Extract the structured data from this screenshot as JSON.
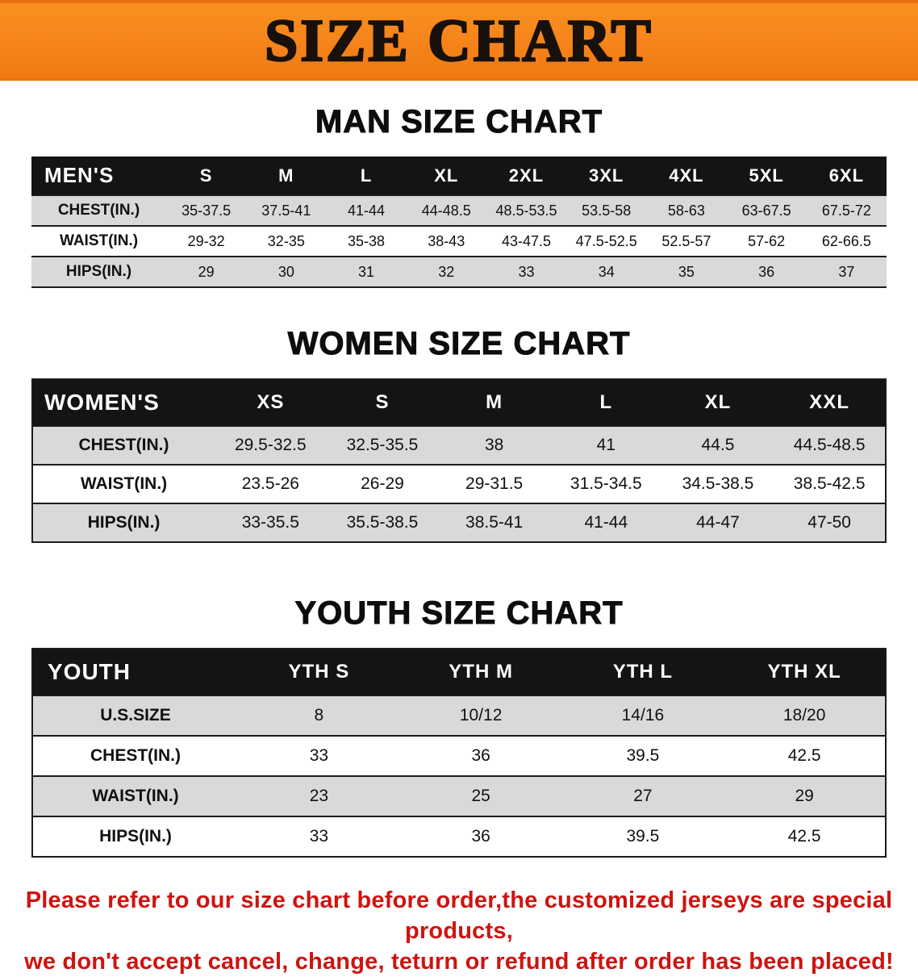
{
  "banner": {
    "title": "SIZE CHART"
  },
  "colors": {
    "banner_bg": "#f5831a",
    "table_header_bg": "#141414",
    "row_alt_bg": "#d9d9d9",
    "disclaimer_text": "#ce1410"
  },
  "chart_data": [
    {
      "type": "table",
      "title": "MAN SIZE CHART",
      "columns": [
        "MEN'S",
        "S",
        "M",
        "L",
        "XL",
        "2XL",
        "3XL",
        "4XL",
        "5XL",
        "6XL"
      ],
      "rows": [
        [
          "CHEST(IN.)",
          "35-37.5",
          "37.5-41",
          "41-44",
          "44-48.5",
          "48.5-53.5",
          "53.5-58",
          "58-63",
          "63-67.5",
          "67.5-72"
        ],
        [
          "WAIST(IN.)",
          "29-32",
          "32-35",
          "35-38",
          "38-43",
          "43-47.5",
          "47.5-52.5",
          "52.5-57",
          "57-62",
          "62-66.5"
        ],
        [
          "HIPS(IN.)",
          "29",
          "30",
          "31",
          "32",
          "33",
          "34",
          "35",
          "36",
          "37"
        ]
      ]
    },
    {
      "type": "table",
      "title": "WOMEN SIZE CHART",
      "columns": [
        "WOMEN'S",
        "XS",
        "S",
        "M",
        "L",
        "XL",
        "XXL"
      ],
      "rows": [
        [
          "CHEST(IN.)",
          "29.5-32.5",
          "32.5-35.5",
          "38",
          "41",
          "44.5",
          "44.5-48.5"
        ],
        [
          "WAIST(IN.)",
          "23.5-26",
          "26-29",
          "29-31.5",
          "31.5-34.5",
          "34.5-38.5",
          "38.5-42.5"
        ],
        [
          "HIPS(IN.)",
          "33-35.5",
          "35.5-38.5",
          "38.5-41",
          "41-44",
          "44-47",
          "47-50"
        ]
      ]
    },
    {
      "type": "table",
      "title": "YOUTH SIZE CHART",
      "columns": [
        "YOUTH",
        "YTH S",
        "YTH M",
        "YTH L",
        "YTH XL"
      ],
      "rows": [
        [
          "U.S.SIZE",
          "8",
          "10/12",
          "14/16",
          "18/20"
        ],
        [
          "CHEST(IN.)",
          "33",
          "36",
          "39.5",
          "42.5"
        ],
        [
          "WAIST(IN.)",
          "23",
          "25",
          "27",
          "29"
        ],
        [
          "HIPS(IN.)",
          "33",
          "36",
          "39.5",
          "42.5"
        ]
      ]
    }
  ],
  "footer": {
    "line1": "Please refer to our size chart before order,the customized jerseys are special products,",
    "line2": "we don't accept cancel, change, teturn or refund after order has been placed!"
  }
}
